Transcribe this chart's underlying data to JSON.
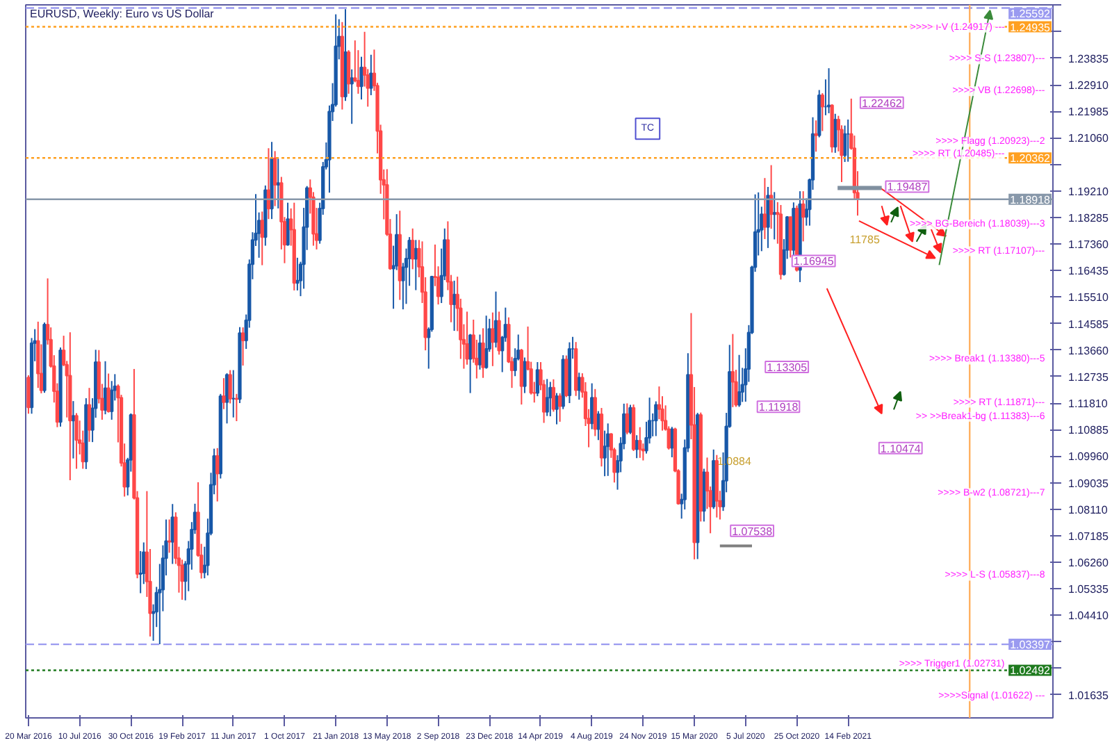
{
  "chart_data": {
    "type": "candlestick",
    "title": "EURUSD, Weekly:  Euro vs US Dollar",
    "xlim": [
      "2016-03-14",
      "2022-05-08"
    ],
    "ylim": [
      1.0083,
      1.257
    ],
    "xticks": [
      {
        "value": "2016-03-20",
        "label": "20 Mar 2016"
      },
      {
        "value": "2016-07-10",
        "label": "10 Jul 2016"
      },
      {
        "value": "2016-10-30",
        "label": "30 Oct 2016"
      },
      {
        "value": "2017-02-19",
        "label": "19 Feb 2017"
      },
      {
        "value": "2017-06-11",
        "label": "11 Jun 2017"
      },
      {
        "value": "2017-10-01",
        "label": "1 Oct 2017"
      },
      {
        "value": "2018-01-21",
        "label": "21 Jan 2018"
      },
      {
        "value": "2018-05-13",
        "label": "13 May 2018"
      },
      {
        "value": "2018-09-02",
        "label": "2 Sep 2018"
      },
      {
        "value": "2018-12-23",
        "label": "23 Dec 2018"
      },
      {
        "value": "2019-04-14",
        "label": "14 Apr 2019"
      },
      {
        "value": "2019-08-04",
        "label": "4 Aug 2019"
      },
      {
        "value": "2019-11-24",
        "label": "24 Nov 2019"
      },
      {
        "value": "2020-03-15",
        "label": "15 Mar 2020"
      },
      {
        "value": "2020-07-05",
        "label": "5 Jul 2020"
      },
      {
        "value": "2020-10-25",
        "label": "25 Oct 2020"
      },
      {
        "value": "2021-02-14",
        "label": "14 Feb 2021"
      }
    ],
    "yticks": [
      {
        "value": 1.01635,
        "label": "1.01635"
      },
      {
        "value": 1.0256,
        "label": null
      },
      {
        "value": 1.03485,
        "label": null
      },
      {
        "value": 1.0441,
        "label": "1.04410"
      },
      {
        "value": 1.05335,
        "label": "1.05335"
      },
      {
        "value": 1.0626,
        "label": "1.06260"
      },
      {
        "value": 1.07185,
        "label": "1.07185"
      },
      {
        "value": 1.0811,
        "label": "1.08110"
      },
      {
        "value": 1.09035,
        "label": "1.09035"
      },
      {
        "value": 1.0996,
        "label": "1.09960"
      },
      {
        "value": 1.10885,
        "label": "1.10885"
      },
      {
        "value": 1.1181,
        "label": "1.11810"
      },
      {
        "value": 1.12735,
        "label": "1.12735"
      },
      {
        "value": 1.1366,
        "label": "1.13660"
      },
      {
        "value": 1.14585,
        "label": "1.14585"
      },
      {
        "value": 1.1551,
        "label": "1.15510"
      },
      {
        "value": 1.16435,
        "label": "1.16435"
      },
      {
        "value": 1.1736,
        "label": "1.17360"
      },
      {
        "value": 1.18285,
        "label": "1.18285"
      },
      {
        "value": 1.1921,
        "label": "1.19210"
      },
      {
        "value": 1.20135,
        "label": null
      },
      {
        "value": 1.2106,
        "label": "1.21060"
      },
      {
        "value": 1.21985,
        "label": "1.21985"
      },
      {
        "value": 1.2291,
        "label": "1.22910"
      },
      {
        "value": 1.23835,
        "label": "1.23835"
      },
      {
        "value": 1.2476,
        "label": null
      },
      {
        "value": 1.25685,
        "label": null
      }
    ],
    "x": [
      "2016-03-20",
      "2016-03-27",
      "2016-04-03",
      "2016-04-10",
      "2016-04-17",
      "2016-04-24",
      "2016-05-01",
      "2016-05-08",
      "2016-05-15",
      "2016-05-22",
      "2016-05-29",
      "2016-06-05",
      "2016-06-12",
      "2016-06-19",
      "2016-06-26",
      "2016-07-03",
      "2016-07-10",
      "2016-07-17",
      "2016-07-24",
      "2016-07-31",
      "2016-08-07",
      "2016-08-14",
      "2016-08-21",
      "2016-08-28",
      "2016-09-04",
      "2016-09-11",
      "2016-09-18",
      "2016-09-25",
      "2016-10-02",
      "2016-10-09",
      "2016-10-16",
      "2016-10-23",
      "2016-10-30",
      "2016-11-06",
      "2016-11-13",
      "2016-11-20",
      "2016-11-27",
      "2016-12-04",
      "2016-12-11",
      "2016-12-18",
      "2016-12-25",
      "2017-01-01",
      "2017-01-08",
      "2017-01-15",
      "2017-01-22",
      "2017-01-29",
      "2017-02-05",
      "2017-02-12",
      "2017-02-19",
      "2017-02-26",
      "2017-03-05",
      "2017-03-12",
      "2017-03-19",
      "2017-03-26",
      "2017-04-02",
      "2017-04-09",
      "2017-04-16",
      "2017-04-23",
      "2017-04-30",
      "2017-05-07",
      "2017-05-14",
      "2017-05-21",
      "2017-05-28",
      "2017-06-04",
      "2017-06-11",
      "2017-06-18",
      "2017-06-25",
      "2017-07-02",
      "2017-07-09",
      "2017-07-16",
      "2017-07-23",
      "2017-07-30",
      "2017-08-06",
      "2017-08-13",
      "2017-08-20",
      "2017-08-27",
      "2017-09-03",
      "2017-09-10",
      "2017-09-17",
      "2017-09-24",
      "2017-10-01",
      "2017-10-08",
      "2017-10-15",
      "2017-10-22",
      "2017-10-29",
      "2017-11-05",
      "2017-11-12",
      "2017-11-19",
      "2017-11-26",
      "2017-12-03",
      "2017-12-10",
      "2017-12-17",
      "2017-12-24",
      "2017-12-31",
      "2018-01-07",
      "2018-01-14",
      "2018-01-21",
      "2018-01-28",
      "2018-02-04",
      "2018-02-11",
      "2018-02-18",
      "2018-02-25",
      "2018-03-04",
      "2018-03-11",
      "2018-03-18",
      "2018-03-25",
      "2018-04-01",
      "2018-04-08",
      "2018-04-15",
      "2018-04-22",
      "2018-04-29",
      "2018-05-06",
      "2018-05-13",
      "2018-05-20",
      "2018-05-27",
      "2018-06-03",
      "2018-06-10",
      "2018-06-17",
      "2018-06-24",
      "2018-07-01",
      "2018-07-08",
      "2018-07-15",
      "2018-07-22",
      "2018-07-29",
      "2018-08-05",
      "2018-08-12",
      "2018-08-19",
      "2018-08-26",
      "2018-09-02",
      "2018-09-09",
      "2018-09-16",
      "2018-09-23",
      "2018-09-30",
      "2018-10-07",
      "2018-10-14",
      "2018-10-21",
      "2018-10-28",
      "2018-11-04",
      "2018-11-11",
      "2018-11-18",
      "2018-11-25",
      "2018-12-02",
      "2018-12-09",
      "2018-12-16",
      "2018-12-23",
      "2018-12-30",
      "2019-01-06",
      "2019-01-13",
      "2019-01-20",
      "2019-01-27",
      "2019-02-03",
      "2019-02-10",
      "2019-02-17",
      "2019-02-24",
      "2019-03-03",
      "2019-03-10",
      "2019-03-17",
      "2019-03-24",
      "2019-03-31",
      "2019-04-07",
      "2019-04-14",
      "2019-04-21",
      "2019-04-28",
      "2019-05-05",
      "2019-05-12",
      "2019-05-19",
      "2019-05-26",
      "2019-06-02",
      "2019-06-09",
      "2019-06-16",
      "2019-06-23",
      "2019-06-30",
      "2019-07-07",
      "2019-07-14",
      "2019-07-21",
      "2019-07-28",
      "2019-08-04",
      "2019-08-11",
      "2019-08-18",
      "2019-08-25",
      "2019-09-01",
      "2019-09-08",
      "2019-09-15",
      "2019-09-22",
      "2019-09-29",
      "2019-10-06",
      "2019-10-13",
      "2019-10-20",
      "2019-10-27",
      "2019-11-03",
      "2019-11-10",
      "2019-11-17",
      "2019-11-24",
      "2019-12-01",
      "2019-12-08",
      "2019-12-15",
      "2019-12-22",
      "2019-12-29",
      "2020-01-05",
      "2020-01-12",
      "2020-01-19",
      "2020-01-26",
      "2020-02-02",
      "2020-02-09",
      "2020-02-16",
      "2020-02-23",
      "2020-03-01",
      "2020-03-08",
      "2020-03-15",
      "2020-03-22",
      "2020-03-29",
      "2020-04-05",
      "2020-04-12",
      "2020-04-19",
      "2020-04-26",
      "2020-05-03",
      "2020-05-10",
      "2020-05-17",
      "2020-05-24",
      "2020-05-31",
      "2020-06-07",
      "2020-06-14",
      "2020-06-21",
      "2020-06-28",
      "2020-07-05",
      "2020-07-12",
      "2020-07-19",
      "2020-07-26",
      "2020-08-02",
      "2020-08-09",
      "2020-08-16",
      "2020-08-23",
      "2020-08-30",
      "2020-09-06",
      "2020-09-13",
      "2020-09-20",
      "2020-09-27",
      "2020-10-04",
      "2020-10-11",
      "2020-10-18",
      "2020-10-25",
      "2020-11-01",
      "2020-11-08",
      "2020-11-15",
      "2020-11-22",
      "2020-11-29",
      "2020-12-06",
      "2020-12-13",
      "2020-12-20",
      "2020-12-27",
      "2021-01-03",
      "2021-01-10",
      "2021-01-17",
      "2021-01-24",
      "2021-01-31",
      "2021-02-07",
      "2021-02-14",
      "2021-02-21",
      "2021-02-28",
      "2021-03-07"
    ],
    "ohlc": [
      [
        1.127,
        1.1278,
        1.1144,
        1.1166
      ],
      [
        1.1166,
        1.1408,
        1.1144,
        1.139
      ],
      [
        1.139,
        1.1439,
        1.1327,
        1.1398
      ],
      [
        1.1398,
        1.1465,
        1.1234,
        1.1284
      ],
      [
        1.1284,
        1.1386,
        1.1215,
        1.1225
      ],
      [
        1.1225,
        1.1462,
        1.1217,
        1.1455
      ],
      [
        1.1455,
        1.1616,
        1.1385,
        1.1402
      ],
      [
        1.1402,
        1.1445,
        1.1305,
        1.131
      ],
      [
        1.131,
        1.1348,
        1.1183,
        1.1222
      ],
      [
        1.1222,
        1.125,
        1.1097,
        1.1115
      ],
      [
        1.1115,
        1.1375,
        1.1099,
        1.1365
      ],
      [
        1.1365,
        1.1416,
        1.131,
        1.1315
      ],
      [
        1.1315,
        1.1328,
        1.1131,
        1.1277
      ],
      [
        1.1277,
        1.1428,
        1.0912,
        1.112
      ],
      [
        1.112,
        1.1188,
        1.0988,
        1.1137
      ],
      [
        1.1137,
        1.1146,
        1.0952,
        1.1052
      ],
      [
        1.1052,
        1.112,
        1.1002,
        1.1041
      ],
      [
        1.1041,
        1.1085,
        1.0952,
        1.0977
      ],
      [
        1.0977,
        1.1198,
        1.0951,
        1.1175
      ],
      [
        1.1175,
        1.1234,
        1.1046,
        1.1087
      ],
      [
        1.1087,
        1.1198,
        1.1045,
        1.1163
      ],
      [
        1.1163,
        1.1367,
        1.113,
        1.1324
      ],
      [
        1.1324,
        1.1366,
        1.118,
        1.1197
      ],
      [
        1.1197,
        1.1248,
        1.1123,
        1.1157
      ],
      [
        1.1157,
        1.1327,
        1.1142,
        1.1233
      ],
      [
        1.1233,
        1.1284,
        1.1148,
        1.1152
      ],
      [
        1.1152,
        1.1258,
        1.1123,
        1.1226
      ],
      [
        1.1226,
        1.1282,
        1.119,
        1.124
      ],
      [
        1.124,
        1.1246,
        1.1044,
        1.12
      ],
      [
        1.12,
        1.121,
        1.096,
        1.0972
      ],
      [
        1.0972,
        1.104,
        1.0855,
        1.0889
      ],
      [
        1.0889,
        1.099,
        1.0859,
        1.0983
      ],
      [
        1.0983,
        1.1145,
        1.0942,
        1.114
      ],
      [
        1.114,
        1.13,
        1.0845,
        1.085
      ],
      [
        1.085,
        1.0874,
        1.057,
        1.0585
      ],
      [
        1.0585,
        1.0665,
        1.0518,
        1.0587
      ],
      [
        1.0587,
        1.0695,
        1.055,
        1.0661
      ],
      [
        1.0661,
        1.0874,
        1.0505,
        1.0559
      ],
      [
        1.0559,
        1.0672,
        1.0367,
        1.0448
      ],
      [
        1.0448,
        1.0479,
        1.0352,
        1.0453
      ],
      [
        1.0453,
        1.054,
        1.04,
        1.052
      ],
      [
        1.052,
        1.062,
        1.034,
        1.053
      ],
      [
        1.053,
        1.0685,
        1.0455,
        1.064
      ],
      [
        1.064,
        1.0775,
        1.058,
        1.07
      ],
      [
        1.07,
        1.0775,
        1.0659,
        1.0697
      ],
      [
        1.0697,
        1.0829,
        1.062,
        1.0783
      ],
      [
        1.0783,
        1.08,
        1.062,
        1.064
      ],
      [
        1.064,
        1.068,
        1.052,
        1.0615
      ],
      [
        1.0615,
        1.0635,
        1.0495,
        1.056
      ],
      [
        1.056,
        1.063,
        1.0493,
        1.062
      ],
      [
        1.062,
        1.07,
        1.0525,
        1.0672
      ],
      [
        1.0672,
        1.0766,
        1.06,
        1.074
      ],
      [
        1.074,
        1.083,
        1.0725,
        1.08
      ],
      [
        1.08,
        1.0905,
        1.0645,
        1.065
      ],
      [
        1.065,
        1.069,
        1.0569,
        1.059
      ],
      [
        1.059,
        1.068,
        1.057,
        1.0615
      ],
      [
        1.0615,
        1.0778,
        1.058,
        1.0727
      ],
      [
        1.0727,
        1.0938,
        1.072,
        1.0896
      ],
      [
        1.0896,
        1.1022,
        1.0863,
        1.0997
      ],
      [
        1.0997,
        1.1024,
        1.0838,
        1.0935
      ],
      [
        1.0935,
        1.1213,
        1.0918,
        1.1205
      ],
      [
        1.1205,
        1.1268,
        1.116,
        1.1184
      ],
      [
        1.1184,
        1.1285,
        1.111,
        1.128
      ],
      [
        1.128,
        1.1296,
        1.118,
        1.1196
      ],
      [
        1.1196,
        1.1296,
        1.1131,
        1.1197
      ],
      [
        1.1197,
        1.1213,
        1.1118,
        1.1195
      ],
      [
        1.1195,
        1.1446,
        1.1181,
        1.1425
      ],
      [
        1.1425,
        1.1445,
        1.1312,
        1.1399
      ],
      [
        1.1399,
        1.149,
        1.137,
        1.147
      ],
      [
        1.147,
        1.1682,
        1.1444,
        1.1665
      ],
      [
        1.1665,
        1.1777,
        1.1613,
        1.175
      ],
      [
        1.175,
        1.191,
        1.1729,
        1.1773
      ],
      [
        1.1773,
        1.1846,
        1.1688,
        1.1818
      ],
      [
        1.1818,
        1.1849,
        1.1662,
        1.176
      ],
      [
        1.176,
        1.194,
        1.173,
        1.1924
      ],
      [
        1.1924,
        1.207,
        1.1823,
        1.1859
      ],
      [
        1.1859,
        1.2092,
        1.1823,
        1.2035
      ],
      [
        1.2035,
        1.206,
        1.1868,
        1.1942
      ],
      [
        1.1942,
        1.2034,
        1.186,
        1.1949
      ],
      [
        1.1949,
        1.197,
        1.1717,
        1.1814
      ],
      [
        1.1814,
        1.183,
        1.1669,
        1.1733
      ],
      [
        1.1733,
        1.188,
        1.173,
        1.1823
      ],
      [
        1.1823,
        1.186,
        1.173,
        1.1786
      ],
      [
        1.1786,
        1.188,
        1.1574,
        1.16
      ],
      [
        1.16,
        1.1688,
        1.1574,
        1.1608
      ],
      [
        1.1608,
        1.1674,
        1.1554,
        1.1665
      ],
      [
        1.1665,
        1.1862,
        1.158,
        1.1795
      ],
      [
        1.1795,
        1.1938,
        1.1715,
        1.1931
      ],
      [
        1.1931,
        1.1961,
        1.1842,
        1.1899
      ],
      [
        1.1899,
        1.1917,
        1.173,
        1.1771
      ],
      [
        1.1771,
        1.1862,
        1.1717,
        1.1749
      ],
      [
        1.1749,
        1.188,
        1.1737,
        1.186
      ],
      [
        1.186,
        1.2022,
        1.1838,
        1.2005
      ],
      [
        1.2005,
        1.209,
        1.1996,
        1.203
      ],
      [
        1.203,
        1.2219,
        1.1915,
        1.2198
      ],
      [
        1.2198,
        1.2297,
        1.2165,
        1.2222
      ],
      [
        1.2222,
        1.2537,
        1.2215,
        1.2426
      ],
      [
        1.2426,
        1.252,
        1.238,
        1.246
      ],
      [
        1.246,
        1.251,
        1.2205,
        1.225
      ],
      [
        1.225,
        1.2555,
        1.2235,
        1.2405
      ],
      [
        1.2405,
        1.2412,
        1.226,
        1.2295
      ],
      [
        1.2295,
        1.2345,
        1.2155,
        1.2315
      ],
      [
        1.2315,
        1.2446,
        1.23,
        1.2306
      ],
      [
        1.2306,
        1.2412,
        1.226,
        1.2286
      ],
      [
        1.2286,
        1.2389,
        1.224,
        1.2352
      ],
      [
        1.2352,
        1.2476,
        1.2285,
        1.2325
      ],
      [
        1.2325,
        1.2346,
        1.2215,
        1.228
      ],
      [
        1.228,
        1.2396,
        1.2255,
        1.2331
      ],
      [
        1.2331,
        1.2414,
        1.227,
        1.2288
      ],
      [
        1.2288,
        1.2298,
        1.2052,
        1.213
      ],
      [
        1.213,
        1.2152,
        1.1911,
        1.196
      ],
      [
        1.196,
        1.1996,
        1.1822,
        1.1942
      ],
      [
        1.1942,
        1.1997,
        1.1764,
        1.177
      ],
      [
        1.177,
        1.1823,
        1.1646,
        1.165
      ],
      [
        1.165,
        1.173,
        1.151,
        1.166
      ],
      [
        1.166,
        1.184,
        1.1645,
        1.1768
      ],
      [
        1.1768,
        1.1852,
        1.1541,
        1.1608
      ],
      [
        1.1608,
        1.167,
        1.1508,
        1.1655
      ],
      [
        1.1655,
        1.172,
        1.1527,
        1.1685
      ],
      [
        1.1685,
        1.176,
        1.159,
        1.1748
      ],
      [
        1.1748,
        1.179,
        1.1648,
        1.1684
      ],
      [
        1.1684,
        1.175,
        1.1575,
        1.172
      ],
      [
        1.172,
        1.175,
        1.162,
        1.1656
      ],
      [
        1.1656,
        1.1745,
        1.153,
        1.1568
      ],
      [
        1.1568,
        1.162,
        1.1365,
        1.141
      ],
      [
        1.141,
        1.1445,
        1.1301,
        1.1438
      ],
      [
        1.1438,
        1.1625,
        1.143,
        1.1622
      ],
      [
        1.1622,
        1.1734,
        1.1589,
        1.162
      ],
      [
        1.162,
        1.1658,
        1.1525,
        1.1553
      ],
      [
        1.1553,
        1.172,
        1.153,
        1.1625
      ],
      [
        1.1625,
        1.179,
        1.161,
        1.175
      ],
      [
        1.175,
        1.1815,
        1.1575,
        1.1604
      ],
      [
        1.1604,
        1.1628,
        1.1463,
        1.1525
      ],
      [
        1.1525,
        1.1608,
        1.1433,
        1.156
      ],
      [
        1.156,
        1.1622,
        1.1432,
        1.1512
      ],
      [
        1.1512,
        1.1545,
        1.1335,
        1.1402
      ],
      [
        1.1402,
        1.1456,
        1.1301,
        1.1387
      ],
      [
        1.1387,
        1.15,
        1.1315,
        1.1335
      ],
      [
        1.1335,
        1.1422,
        1.1216,
        1.1418
      ],
      [
        1.1418,
        1.1472,
        1.1322,
        1.1337
      ],
      [
        1.1337,
        1.1402,
        1.1267,
        1.1315
      ],
      [
        1.1315,
        1.142,
        1.1298,
        1.139
      ],
      [
        1.139,
        1.1442,
        1.1269,
        1.1305
      ],
      [
        1.1305,
        1.1486,
        1.1301,
        1.137
      ],
      [
        1.137,
        1.1475,
        1.136,
        1.144
      ],
      [
        1.144,
        1.1497,
        1.131,
        1.1394
      ],
      [
        1.1394,
        1.157,
        1.1375,
        1.1468
      ],
      [
        1.1468,
        1.15,
        1.135,
        1.1364
      ],
      [
        1.1364,
        1.1415,
        1.1289,
        1.141
      ],
      [
        1.141,
        1.1514,
        1.1395,
        1.1455
      ],
      [
        1.1455,
        1.148,
        1.1321,
        1.1325
      ],
      [
        1.1325,
        1.1342,
        1.1234,
        1.1295
      ],
      [
        1.1295,
        1.1372,
        1.1275,
        1.1336
      ],
      [
        1.1336,
        1.142,
        1.133,
        1.1365
      ],
      [
        1.1365,
        1.137,
        1.1176,
        1.124
      ],
      [
        1.124,
        1.134,
        1.1216,
        1.1325
      ],
      [
        1.1325,
        1.1448,
        1.1295,
        1.13
      ],
      [
        1.13,
        1.1325,
        1.1211,
        1.1217
      ],
      [
        1.1217,
        1.1255,
        1.1183,
        1.1216
      ],
      [
        1.1216,
        1.1324,
        1.1205,
        1.1297
      ],
      [
        1.1297,
        1.1324,
        1.1226,
        1.1245
      ],
      [
        1.1245,
        1.1262,
        1.1112,
        1.115
      ],
      [
        1.115,
        1.1265,
        1.1136,
        1.12
      ],
      [
        1.12,
        1.1255,
        1.1135,
        1.1235
      ],
      [
        1.1235,
        1.1264,
        1.1151,
        1.116
      ],
      [
        1.116,
        1.1216,
        1.1107,
        1.1205
      ],
      [
        1.1205,
        1.1215,
        1.1116,
        1.117
      ],
      [
        1.117,
        1.1348,
        1.116,
        1.1333
      ],
      [
        1.1333,
        1.1347,
        1.1202,
        1.1208
      ],
      [
        1.1208,
        1.1393,
        1.1181,
        1.137
      ],
      [
        1.137,
        1.1412,
        1.1336,
        1.137
      ],
      [
        1.137,
        1.1394,
        1.1206,
        1.1226
      ],
      [
        1.1226,
        1.1287,
        1.1193,
        1.127
      ],
      [
        1.127,
        1.1285,
        1.12,
        1.122
      ],
      [
        1.122,
        1.1254,
        1.1101,
        1.1127
      ],
      [
        1.1127,
        1.116,
        1.1027,
        1.111
      ],
      [
        1.111,
        1.125,
        1.109,
        1.12
      ],
      [
        1.12,
        1.123,
        1.1066,
        1.109
      ],
      [
        1.109,
        1.1153,
        1.1052,
        1.1142
      ],
      [
        1.1142,
        1.1164,
        1.096,
        1.099
      ],
      [
        1.099,
        1.1085,
        1.0926,
        1.103
      ],
      [
        1.103,
        1.111,
        1.0927,
        1.1073
      ],
      [
        1.1073,
        1.1076,
        1.099,
        1.1018
      ],
      [
        1.1018,
        1.1025,
        1.0904,
        1.094
      ],
      [
        1.094,
        1.0999,
        1.0879,
        1.098
      ],
      [
        1.098,
        1.1062,
        1.094,
        1.104
      ],
      [
        1.104,
        1.1179,
        1.102,
        1.1143
      ],
      [
        1.1143,
        1.118,
        1.1072,
        1.108
      ],
      [
        1.108,
        1.1175,
        1.1073,
        1.1165
      ],
      [
        1.1165,
        1.1176,
        1.1014,
        1.102
      ],
      [
        1.102,
        1.1069,
        1.0989,
        1.105
      ],
      [
        1.105,
        1.1097,
        1.099,
        1.102
      ],
      [
        1.102,
        1.104,
        1.0981,
        1.1015
      ],
      [
        1.1015,
        1.1116,
        1.1005,
        1.106
      ],
      [
        1.106,
        1.12,
        1.104,
        1.112
      ],
      [
        1.112,
        1.1145,
        1.1065,
        1.112
      ],
      [
        1.112,
        1.1187,
        1.1066,
        1.1175
      ],
      [
        1.1175,
        1.1239,
        1.1125,
        1.116
      ],
      [
        1.116,
        1.1205,
        1.1085,
        1.112
      ],
      [
        1.112,
        1.1173,
        1.1085,
        1.109
      ],
      [
        1.109,
        1.11,
        1.1019,
        1.1025
      ],
      [
        1.1025,
        1.1098,
        1.0992,
        1.109
      ],
      [
        1.109,
        1.1095,
        1.094,
        1.0945
      ],
      [
        1.0945,
        1.095,
        1.0827,
        1.083
      ],
      [
        1.083,
        1.0865,
        1.0778,
        1.0845
      ],
      [
        1.0845,
        1.1054,
        1.081,
        1.1025
      ],
      [
        1.1025,
        1.1355,
        1.101,
        1.128
      ],
      [
        1.128,
        1.1495,
        1.1055,
        1.1105
      ],
      [
        1.1105,
        1.1237,
        1.0636,
        1.0695
      ],
      [
        1.0695,
        1.1147,
        1.0637,
        1.114
      ],
      [
        1.114,
        1.1148,
        1.0768,
        1.0805
      ],
      [
        1.0805,
        1.0952,
        1.0768,
        1.094
      ],
      [
        1.094,
        1.0991,
        1.0812,
        1.0875
      ],
      [
        1.0875,
        1.089,
        1.0727,
        1.082
      ],
      [
        1.082,
        1.1019,
        1.0812,
        1.098
      ],
      [
        1.098,
        1.1,
        1.0782,
        1.084
      ],
      [
        1.084,
        1.0875,
        1.0775,
        1.082
      ],
      [
        1.082,
        1.1009,
        1.0805,
        1.091
      ],
      [
        1.091,
        1.1147,
        1.087,
        1.11
      ],
      [
        1.11,
        1.1384,
        1.1095,
        1.129
      ],
      [
        1.129,
        1.1422,
        1.1167,
        1.1255
      ],
      [
        1.1255,
        1.1297,
        1.1168,
        1.1175
      ],
      [
        1.1175,
        1.1349,
        1.1168,
        1.122
      ],
      [
        1.122,
        1.1304,
        1.1185,
        1.1245
      ],
      [
        1.1245,
        1.1372,
        1.1186,
        1.13
      ],
      [
        1.13,
        1.1453,
        1.1255,
        1.1427
      ],
      [
        1.1427,
        1.166,
        1.1422,
        1.1655
      ],
      [
        1.1655,
        1.1909,
        1.1639,
        1.1778
      ],
      [
        1.1778,
        1.1916,
        1.1696,
        1.1785
      ],
      [
        1.1785,
        1.1866,
        1.1711,
        1.184
      ],
      [
        1.184,
        1.1966,
        1.1753,
        1.1795
      ],
      [
        1.1795,
        1.1935,
        1.1722,
        1.1905
      ],
      [
        1.1905,
        1.2011,
        1.1789,
        1.184
      ],
      [
        1.184,
        1.1917,
        1.1752,
        1.1845
      ],
      [
        1.1845,
        1.1882,
        1.1737,
        1.184
      ],
      [
        1.184,
        1.1872,
        1.1612,
        1.163
      ],
      [
        1.163,
        1.1753,
        1.1626,
        1.1715
      ],
      [
        1.1715,
        1.1833,
        1.1684,
        1.183
      ],
      [
        1.183,
        1.1831,
        1.1689,
        1.1715
      ],
      [
        1.1715,
        1.1881,
        1.1689,
        1.186
      ],
      [
        1.186,
        1.187,
        1.164,
        1.1645
      ],
      [
        1.1645,
        1.192,
        1.1603,
        1.1875
      ],
      [
        1.1875,
        1.192,
        1.1745,
        1.183
      ],
      [
        1.183,
        1.1895,
        1.18,
        1.1857
      ],
      [
        1.1857,
        1.1964,
        1.18,
        1.196
      ],
      [
        1.196,
        1.2178,
        1.1925,
        1.212
      ],
      [
        1.212,
        1.2167,
        1.2058,
        1.2115
      ],
      [
        1.2115,
        1.2273,
        1.2108,
        1.2255
      ],
      [
        1.2255,
        1.2262,
        1.213,
        1.2215
      ],
      [
        1.2215,
        1.231,
        1.2185,
        1.2215
      ],
      [
        1.2215,
        1.2349,
        1.2192,
        1.222
      ],
      [
        1.222,
        1.2223,
        1.2055,
        1.2075
      ],
      [
        1.2075,
        1.219,
        1.2054,
        1.217
      ],
      [
        1.217,
        1.2183,
        1.2059,
        1.2135
      ],
      [
        1.2135,
        1.215,
        1.1952,
        1.2045
      ],
      [
        1.2045,
        1.2149,
        1.2022,
        1.212
      ],
      [
        1.212,
        1.217,
        1.2023,
        1.212
      ],
      [
        1.212,
        1.2243,
        1.2065,
        1.207
      ],
      [
        1.207,
        1.2114,
        1.1893,
        1.1915
      ],
      [
        1.1915,
        1.199,
        1.1835,
        1.1892
      ]
    ],
    "ref_lines": [
      {
        "axis": "y",
        "value": 1.25592,
        "label": "1.25592",
        "color": "#9a9af0",
        "line_style": "dashed"
      },
      {
        "axis": "y",
        "value": 1.24935,
        "label": "1.24935",
        "color": "#ffa020",
        "line_style": "dotted"
      },
      {
        "axis": "y",
        "value": 1.20362,
        "label": "1.20362",
        "color": "#ffa020",
        "line_style": "dotted"
      },
      {
        "axis": "y",
        "value": 1.18918,
        "label": "1.18918",
        "color": "#8898aa",
        "line_style": "solid"
      },
      {
        "axis": "y",
        "value": 1.03397,
        "label": "1.03397",
        "color": "#9a9af0",
        "line_style": "dashed"
      },
      {
        "axis": "y",
        "value": 1.02492,
        "label": "1.02492",
        "color": "#1e7a1e",
        "line_style": "dotted"
      },
      {
        "axis": "x",
        "value": "2021-11-07",
        "color": "#ffb060",
        "line_style": "solid"
      }
    ],
    "annotations": [
      "TC",
      "1.22462",
      "1.19487",
      "1.16945",
      "1.13305",
      "1.11918",
      "1.10474",
      "1.07538",
      "1.0884",
      "11785",
      ">>>> ı-V (1.24917) ---",
      ">>>> S-S (1.23807)---",
      ">>>> VB (1.22698)---",
      ">>>> Flagg (1.20923)---2",
      ">>>> RT (1.20485)---",
      ">>>> BG-Bereich (1.18039)---3",
      ">>>> RT (1.17107)---",
      ">>>> Break1 (1.13380)---5",
      ">>>> RT (1.11871)---",
      ">> >>Break1-bg (1.11383)---6",
      ">>>> B-w2 (1.08721)---7",
      ">>>> L-S (1.05837)---8",
      ">>>> Trigger1 (1.02731)",
      ">>>>Signal (1.01622) ---"
    ]
  }
}
